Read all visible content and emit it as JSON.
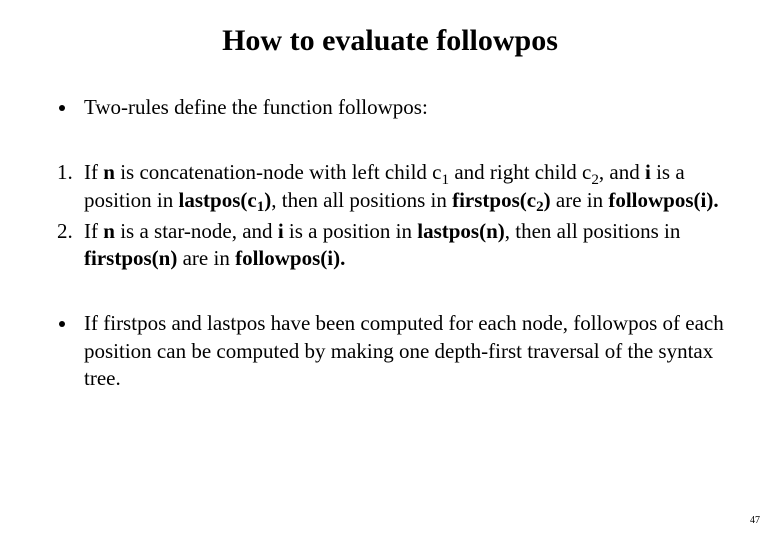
{
  "title": "How to evaluate  followpos",
  "intro_bullet": "Two-rules define the function followpos:",
  "rules": {
    "r1": {
      "pre1": "If ",
      "n": "n",
      "mid1": " is concatenation-node with left child c",
      "sub1": "1",
      "mid2": " and right child c",
      "sub2": "2",
      "mid3": ", and ",
      "i": "i",
      "mid4": " is a position in ",
      "lastpos_c1_a": "lastpos(c",
      "lastpos_c1_sub": "1",
      "lastpos_c1_b": ")",
      "mid5": ", then all positions in ",
      "firstpos_c2_a": "firstpos(c",
      "firstpos_c2_sub": "2",
      "firstpos_c2_b": ")",
      "mid6": " are in ",
      "followpos_i": "followpos(i).",
      "tail": ""
    },
    "r2": {
      "pre1": "If ",
      "n": "n",
      "mid1": " is a star-node, and ",
      "i": "i",
      "mid2": " is a position in ",
      "lastpos_n": "lastpos(n)",
      "mid3": ", then all positions in ",
      "firstpos_n": "firstpos(n)",
      "mid4": " are in ",
      "followpos_i": "followpos(i).",
      "tail": ""
    }
  },
  "closing_bullet": "If firstpos and lastpos have been computed for each node, followpos of each position can be computed by making one depth-first traversal of the syntax tree.",
  "page_number": "47",
  "colors": {
    "background": "#ffffff",
    "text": "#000000"
  }
}
